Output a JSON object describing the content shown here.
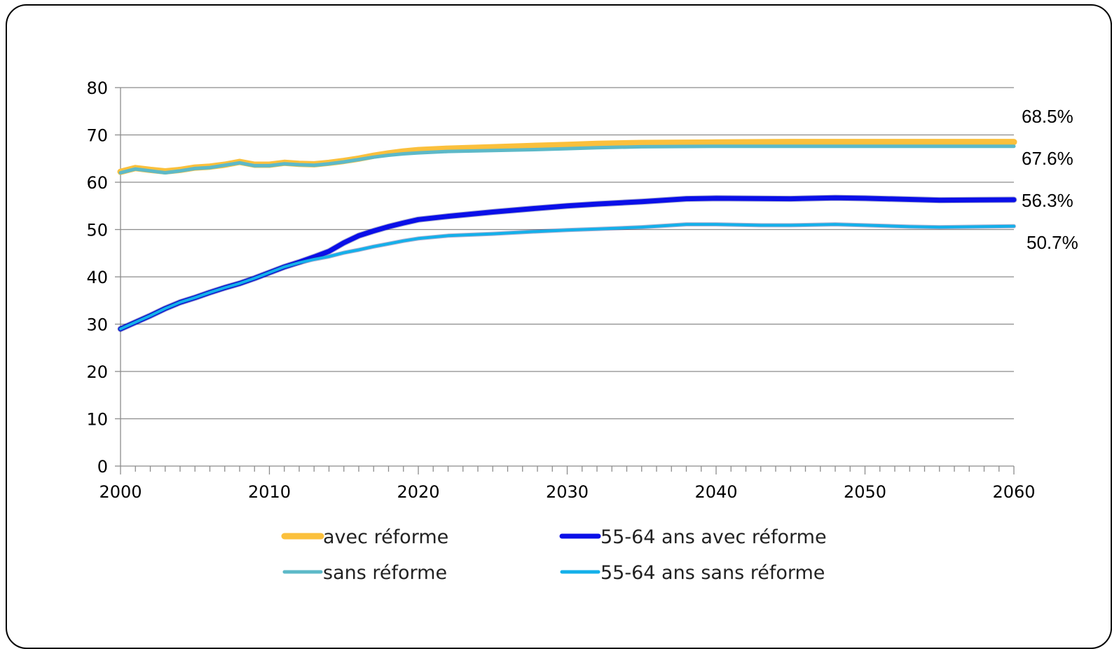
{
  "chart_data": {
    "type": "line",
    "title": "",
    "xlabel": "",
    "ylabel": "",
    "xlim": [
      2000,
      2060
    ],
    "ylim": [
      0,
      80
    ],
    "x_ticks": [
      2000,
      2010,
      2020,
      2030,
      2040,
      2050,
      2060
    ],
    "y_ticks": [
      0,
      10,
      20,
      30,
      40,
      50,
      60,
      70,
      80
    ],
    "grid": "horizontal",
    "legend_position": "bottom",
    "end_labels": [
      "68.5%",
      "67.6%",
      "56.3%",
      "50.7%"
    ],
    "series": [
      {
        "name": "avec réforme",
        "color": "#FBC03C",
        "width": 9,
        "x": [
          2000,
          2001,
          2002,
          2003,
          2004,
          2005,
          2006,
          2007,
          2008,
          2009,
          2010,
          2011,
          2012,
          2013,
          2014,
          2015,
          2016,
          2017,
          2018,
          2019,
          2020,
          2022,
          2025,
          2028,
          2030,
          2032,
          2035,
          2040,
          2045,
          2050,
          2055,
          2060
        ],
        "values": [
          62.2,
          63.0,
          62.6,
          62.3,
          62.6,
          63.1,
          63.3,
          63.7,
          64.3,
          63.7,
          63.7,
          64.1,
          63.9,
          63.8,
          64.1,
          64.5,
          65.0,
          65.6,
          66.1,
          66.5,
          66.8,
          67.1,
          67.4,
          67.7,
          67.9,
          68.1,
          68.3,
          68.4,
          68.5,
          68.5,
          68.5,
          68.5
        ]
      },
      {
        "name": "sans réforme",
        "color": "#5DB9C8",
        "width": 5,
        "x": [
          2000,
          2001,
          2002,
          2003,
          2004,
          2005,
          2006,
          2007,
          2008,
          2009,
          2010,
          2011,
          2012,
          2013,
          2014,
          2015,
          2016,
          2017,
          2018,
          2019,
          2020,
          2022,
          2025,
          2028,
          2030,
          2032,
          2035,
          2040,
          2045,
          2050,
          2055,
          2060
        ],
        "values": [
          62.0,
          62.8,
          62.4,
          62.0,
          62.4,
          62.9,
          63.1,
          63.6,
          64.1,
          63.5,
          63.5,
          63.9,
          63.7,
          63.6,
          63.9,
          64.3,
          64.8,
          65.3,
          65.7,
          66.0,
          66.2,
          66.5,
          66.7,
          66.9,
          67.1,
          67.3,
          67.5,
          67.6,
          67.6,
          67.6,
          67.6,
          67.6
        ]
      },
      {
        "name": "55-64 ans avec réforme",
        "color": "#0A0FE8",
        "width": 7,
        "x": [
          2000,
          2001,
          2002,
          2003,
          2004,
          2005,
          2006,
          2007,
          2008,
          2009,
          2010,
          2011,
          2012,
          2013,
          2014,
          2015,
          2016,
          2017,
          2018,
          2019,
          2020,
          2022,
          2025,
          2028,
          2030,
          2032,
          2035,
          2038,
          2040,
          2045,
          2048,
          2050,
          2055,
          2060
        ],
        "values": [
          29.0,
          30.4,
          31.8,
          33.3,
          34.6,
          35.6,
          36.7,
          37.7,
          38.6,
          39.7,
          40.9,
          42.1,
          43.1,
          44.2,
          45.4,
          47.2,
          48.7,
          49.7,
          50.6,
          51.4,
          52.1,
          52.8,
          53.7,
          54.5,
          55.0,
          55.4,
          55.9,
          56.5,
          56.6,
          56.5,
          56.7,
          56.6,
          56.2,
          56.3
        ]
      },
      {
        "name": "55-64 ans sans réforme",
        "color": "#14B0EA",
        "width": 4,
        "x": [
          2000,
          2001,
          2002,
          2003,
          2004,
          2005,
          2006,
          2007,
          2008,
          2009,
          2010,
          2011,
          2012,
          2013,
          2014,
          2015,
          2016,
          2017,
          2018,
          2019,
          2020,
          2022,
          2025,
          2028,
          2030,
          2032,
          2035,
          2038,
          2040,
          2043,
          2045,
          2048,
          2050,
          2053,
          2055,
          2060
        ],
        "values": [
          29.0,
          30.4,
          31.8,
          33.3,
          34.6,
          35.6,
          36.7,
          37.7,
          38.6,
          39.7,
          40.9,
          42.1,
          43.0,
          43.7,
          44.3,
          45.1,
          45.7,
          46.4,
          47.0,
          47.6,
          48.1,
          48.7,
          49.1,
          49.6,
          49.9,
          50.1,
          50.5,
          51.1,
          51.1,
          50.9,
          50.9,
          51.1,
          50.9,
          50.6,
          50.5,
          50.7
        ]
      }
    ]
  }
}
